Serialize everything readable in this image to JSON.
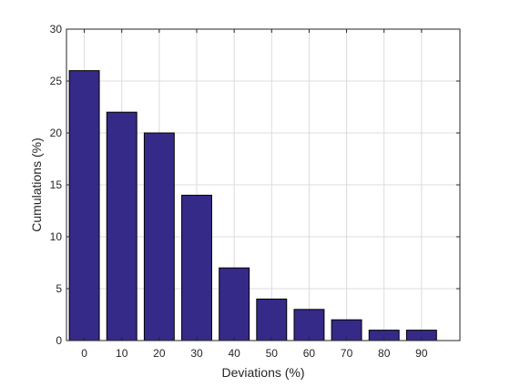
{
  "chart_data": {
    "type": "bar",
    "title": "",
    "xlabel": "Deviations (%)",
    "ylabel": "Cumulations (%)",
    "categories": [
      "0",
      "10",
      "20",
      "30",
      "40",
      "50",
      "60",
      "70",
      "80",
      "90"
    ],
    "values": [
      26,
      22,
      20,
      14,
      7,
      4,
      3,
      2,
      1,
      1
    ],
    "ylim": [
      0,
      30
    ],
    "yticks": [
      "0",
      "5",
      "10",
      "15",
      "20",
      "25",
      "30"
    ],
    "grid": true,
    "legend": "none",
    "colors": {
      "bar_fill": "#352A87",
      "bar_stroke": "#000000",
      "grid": "#DCDCDC",
      "axis": "#262626"
    }
  }
}
